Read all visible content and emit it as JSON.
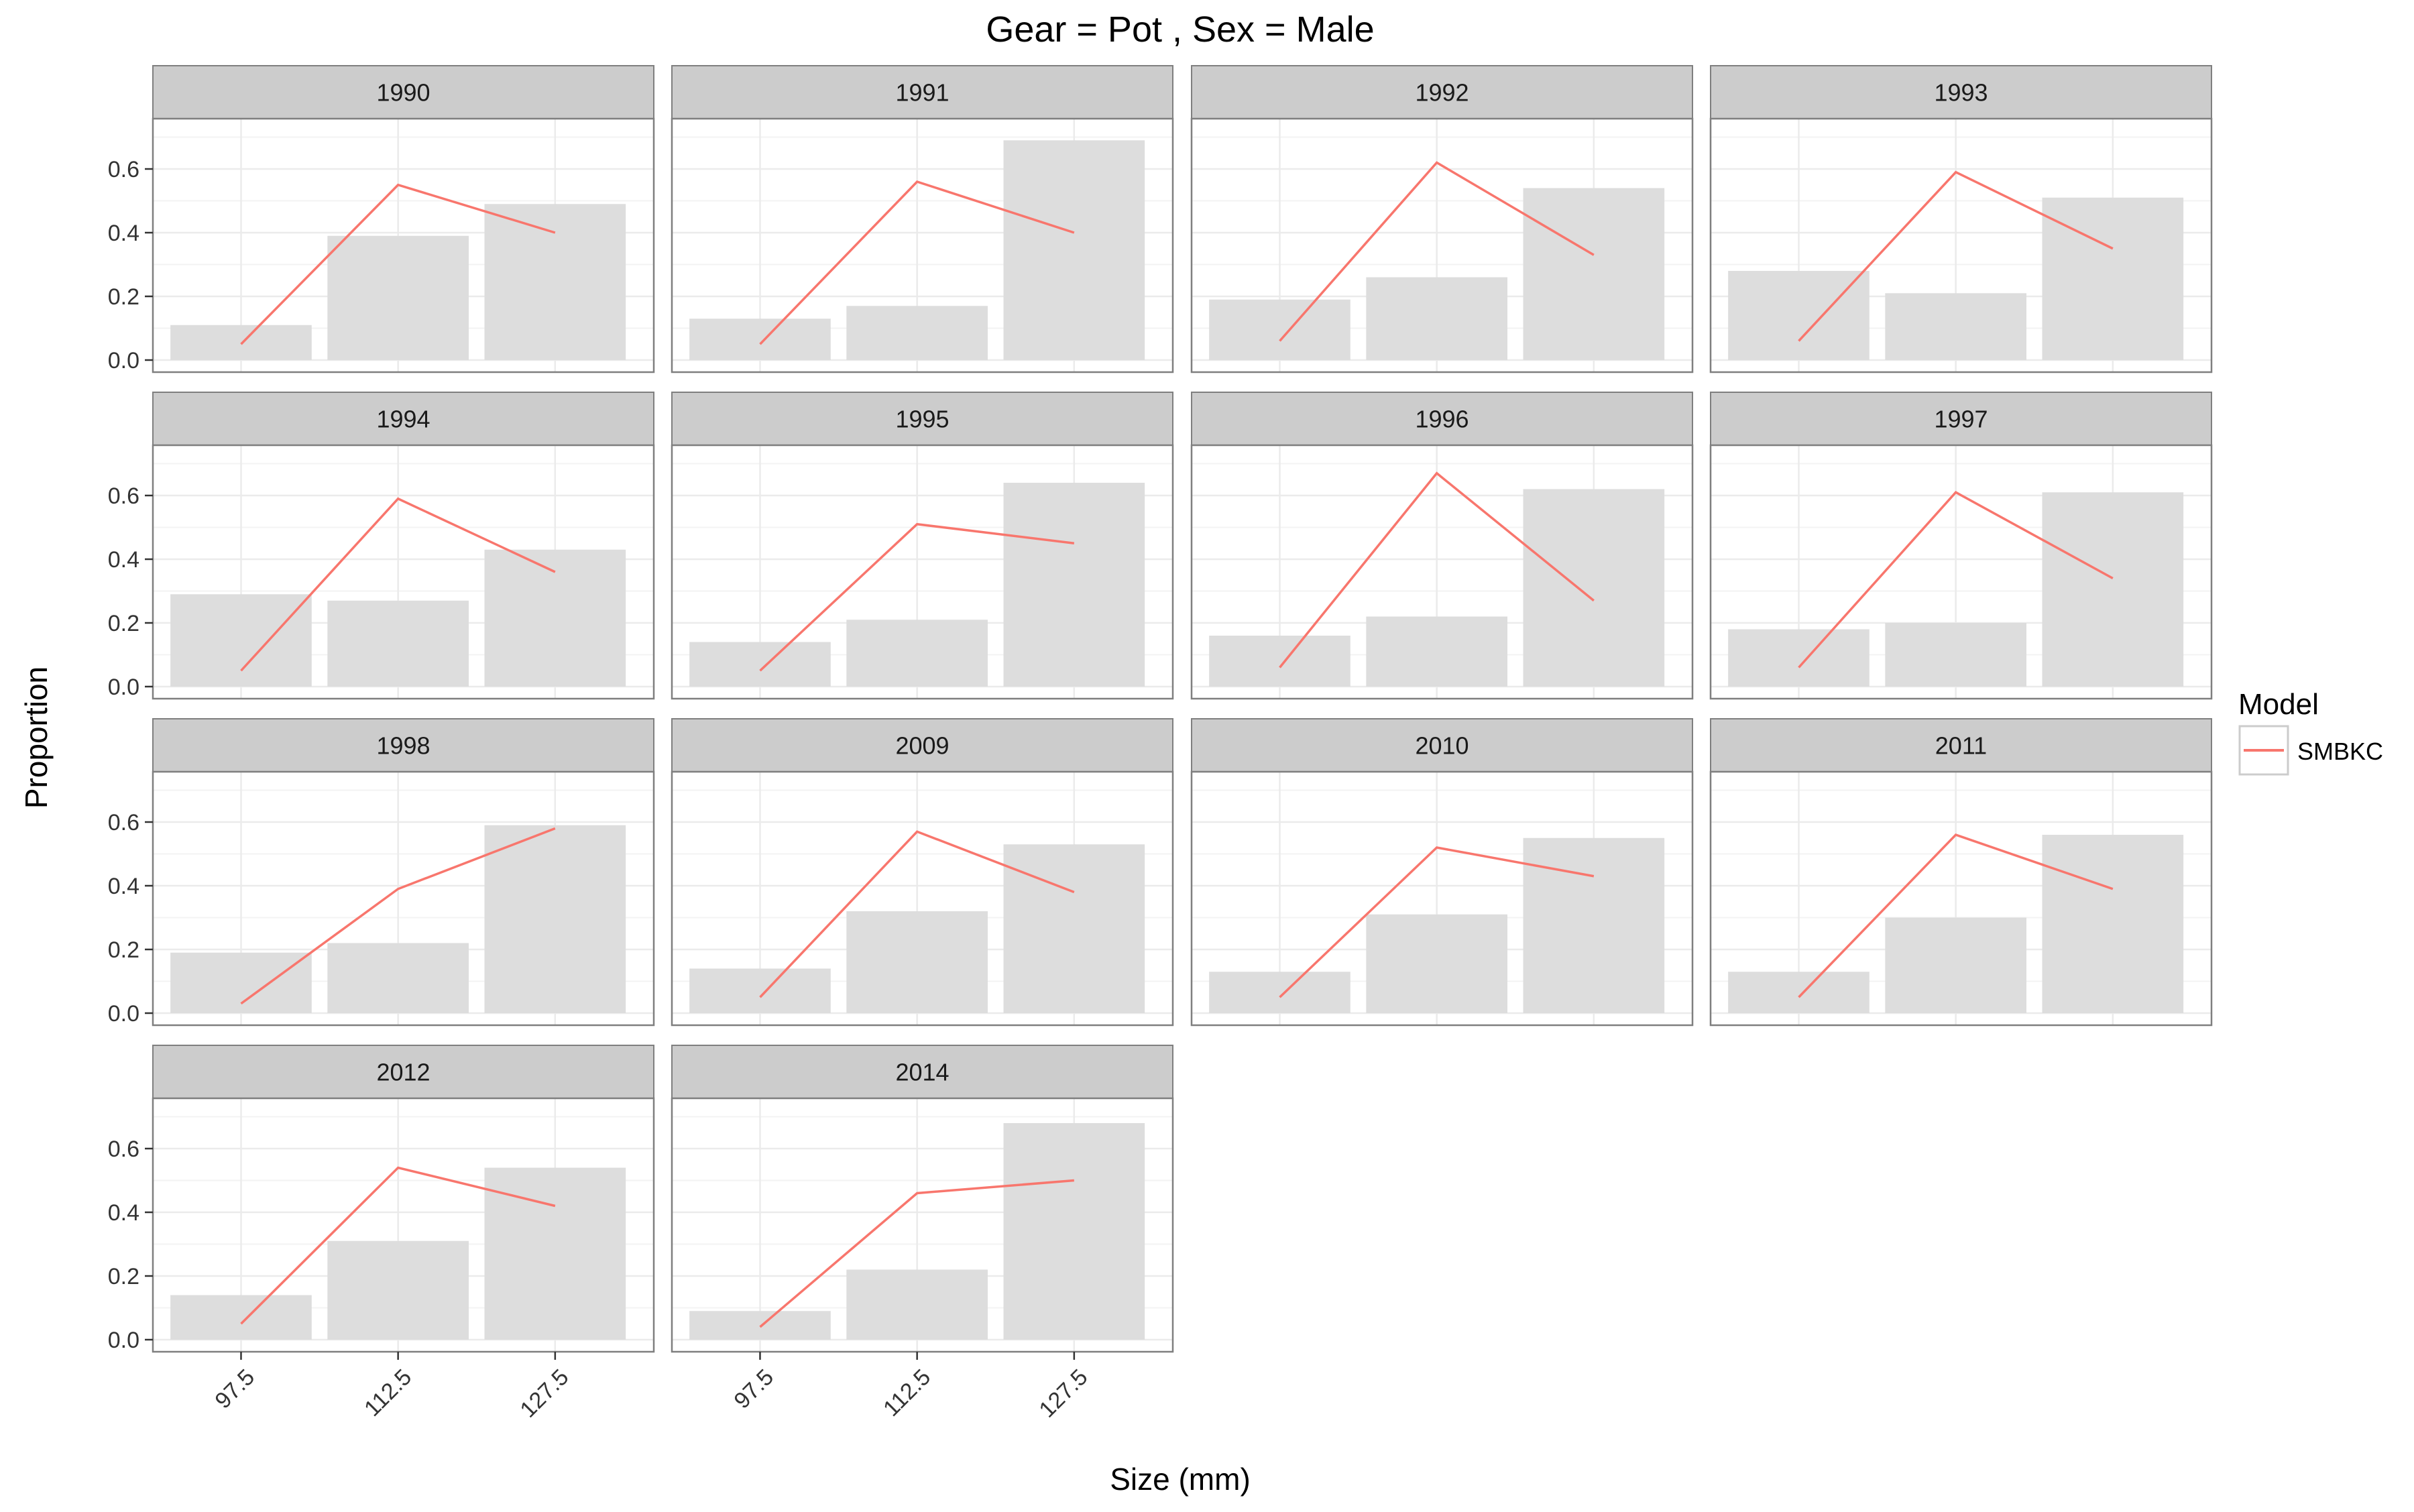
{
  "chart_data": {
    "type": "bar",
    "title": "Gear = Pot , Sex = Male",
    "xlabel": "Size (mm)",
    "ylabel": "Proportion",
    "categories": [
      "97.5",
      "112.5",
      "127.5"
    ],
    "ylim": [
      0,
      0.72
    ],
    "yticks": [
      "0.0",
      "0.2",
      "0.4",
      "0.6"
    ],
    "grid": true,
    "legend": {
      "title": "Model",
      "position": "right",
      "entries": [
        "SMBKC"
      ]
    },
    "colors": {
      "bar": "#dddddd",
      "line": "#f8766d",
      "strip": "#cccccc",
      "panel_border": "#7f7f7f",
      "grid": "#ebebeb"
    },
    "panels": [
      {
        "label": "1990",
        "observed": [
          0.11,
          0.39,
          0.49
        ],
        "predicted": [
          0.05,
          0.55,
          0.4
        ]
      },
      {
        "label": "1991",
        "observed": [
          0.13,
          0.17,
          0.69
        ],
        "predicted": [
          0.05,
          0.56,
          0.4
        ]
      },
      {
        "label": "1992",
        "observed": [
          0.19,
          0.26,
          0.54
        ],
        "predicted": [
          0.06,
          0.62,
          0.33
        ]
      },
      {
        "label": "1993",
        "observed": [
          0.28,
          0.21,
          0.51
        ],
        "predicted": [
          0.06,
          0.59,
          0.35
        ]
      },
      {
        "label": "1994",
        "observed": [
          0.29,
          0.27,
          0.43
        ],
        "predicted": [
          0.05,
          0.59,
          0.36
        ]
      },
      {
        "label": "1995",
        "observed": [
          0.14,
          0.21,
          0.64
        ],
        "predicted": [
          0.05,
          0.51,
          0.45
        ]
      },
      {
        "label": "1996",
        "observed": [
          0.16,
          0.22,
          0.62
        ],
        "predicted": [
          0.06,
          0.67,
          0.27
        ]
      },
      {
        "label": "1997",
        "observed": [
          0.18,
          0.2,
          0.61
        ],
        "predicted": [
          0.06,
          0.61,
          0.34
        ]
      },
      {
        "label": "1998",
        "observed": [
          0.19,
          0.22,
          0.59
        ],
        "predicted": [
          0.03,
          0.39,
          0.58
        ]
      },
      {
        "label": "2009",
        "observed": [
          0.14,
          0.32,
          0.53
        ],
        "predicted": [
          0.05,
          0.57,
          0.38
        ]
      },
      {
        "label": "2010",
        "observed": [
          0.13,
          0.31,
          0.55
        ],
        "predicted": [
          0.05,
          0.52,
          0.43
        ]
      },
      {
        "label": "2011",
        "observed": [
          0.13,
          0.3,
          0.56
        ],
        "predicted": [
          0.05,
          0.56,
          0.39
        ]
      },
      {
        "label": "2012",
        "observed": [
          0.14,
          0.31,
          0.54
        ],
        "predicted": [
          0.05,
          0.54,
          0.42
        ]
      },
      {
        "label": "2014",
        "observed": [
          0.09,
          0.22,
          0.68
        ],
        "predicted": [
          0.04,
          0.46,
          0.5
        ]
      }
    ]
  }
}
